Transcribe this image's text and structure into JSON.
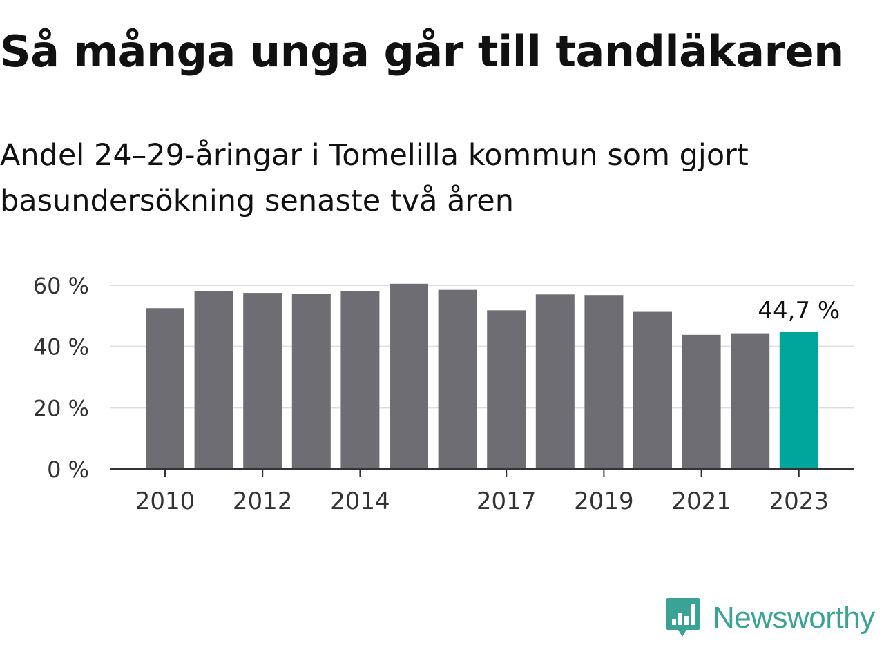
{
  "title": "Så många unga går till tandläkaren",
  "subtitle": "Andel 24–29-åringar i Tomelilla kommun som gjort basundersökning senaste två åren",
  "brand": {
    "name": "Newsworthy",
    "color": "#3aa396",
    "icon": "chart-speech-bubble-icon"
  },
  "chart_data": {
    "type": "bar",
    "categories": [
      "2010",
      "2011",
      "2012",
      "2013",
      "2014",
      "2015",
      "2016",
      "2017",
      "2018",
      "2019",
      "2020",
      "2021",
      "2022",
      "2023"
    ],
    "values": [
      52.5,
      58.0,
      57.5,
      57.2,
      58.0,
      60.5,
      58.5,
      51.8,
      57.0,
      56.8,
      51.3,
      43.8,
      44.3,
      44.7
    ],
    "x_tick_labels": [
      "2010",
      "",
      "2012",
      "",
      "2014",
      "",
      "",
      "2017",
      "",
      "2019",
      "",
      "2021",
      "",
      "2023"
    ],
    "y_ticks": [
      0,
      20,
      40,
      60
    ],
    "y_tick_labels": [
      "0 %",
      "20 %",
      "40 %",
      "60 %"
    ],
    "ylim": [
      0,
      60
    ],
    "grid": true,
    "bar_color": "#6e6d73",
    "highlight_color": "#00a69c",
    "highlight_index": 13,
    "highlight_label": "44,7 %",
    "xlabel": "",
    "ylabel": ""
  }
}
